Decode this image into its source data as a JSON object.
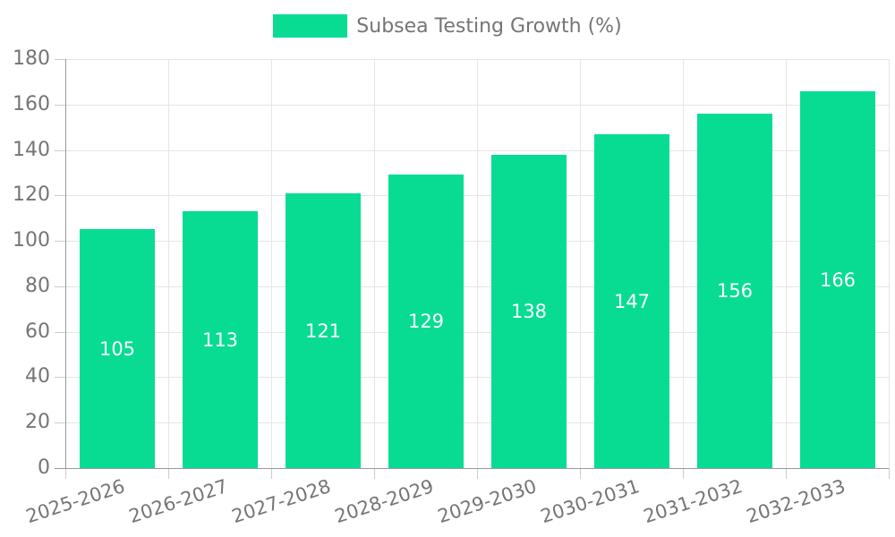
{
  "chart_data": {
    "type": "bar",
    "title": "Subsea Testing Growth (%)",
    "legend": "Subsea Testing Growth (%)",
    "legend_position": "top-center",
    "categories": [
      "2025-2026",
      "2026-2027",
      "2027-2028",
      "2028-2029",
      "2029-2030",
      "2030-2031",
      "2031-2032",
      "2032-2033"
    ],
    "values": [
      105,
      113,
      121,
      129,
      138,
      147,
      156,
      166
    ],
    "xlabel": "",
    "ylabel": "",
    "ylim": [
      0,
      180
    ],
    "yticks": [
      0,
      20,
      40,
      60,
      80,
      100,
      120,
      140,
      160,
      180
    ],
    "grid": true,
    "x_label_rotation_deg": -18,
    "value_label_position": "inside-middle",
    "colors": {
      "bar": "#08DC93",
      "axis": "#999999",
      "tick": "#CCCCCC",
      "gridline": "#E5E5E5",
      "text": "#757575",
      "value_label": "#FFFFFF",
      "background": "#FFFFFF"
    }
  }
}
